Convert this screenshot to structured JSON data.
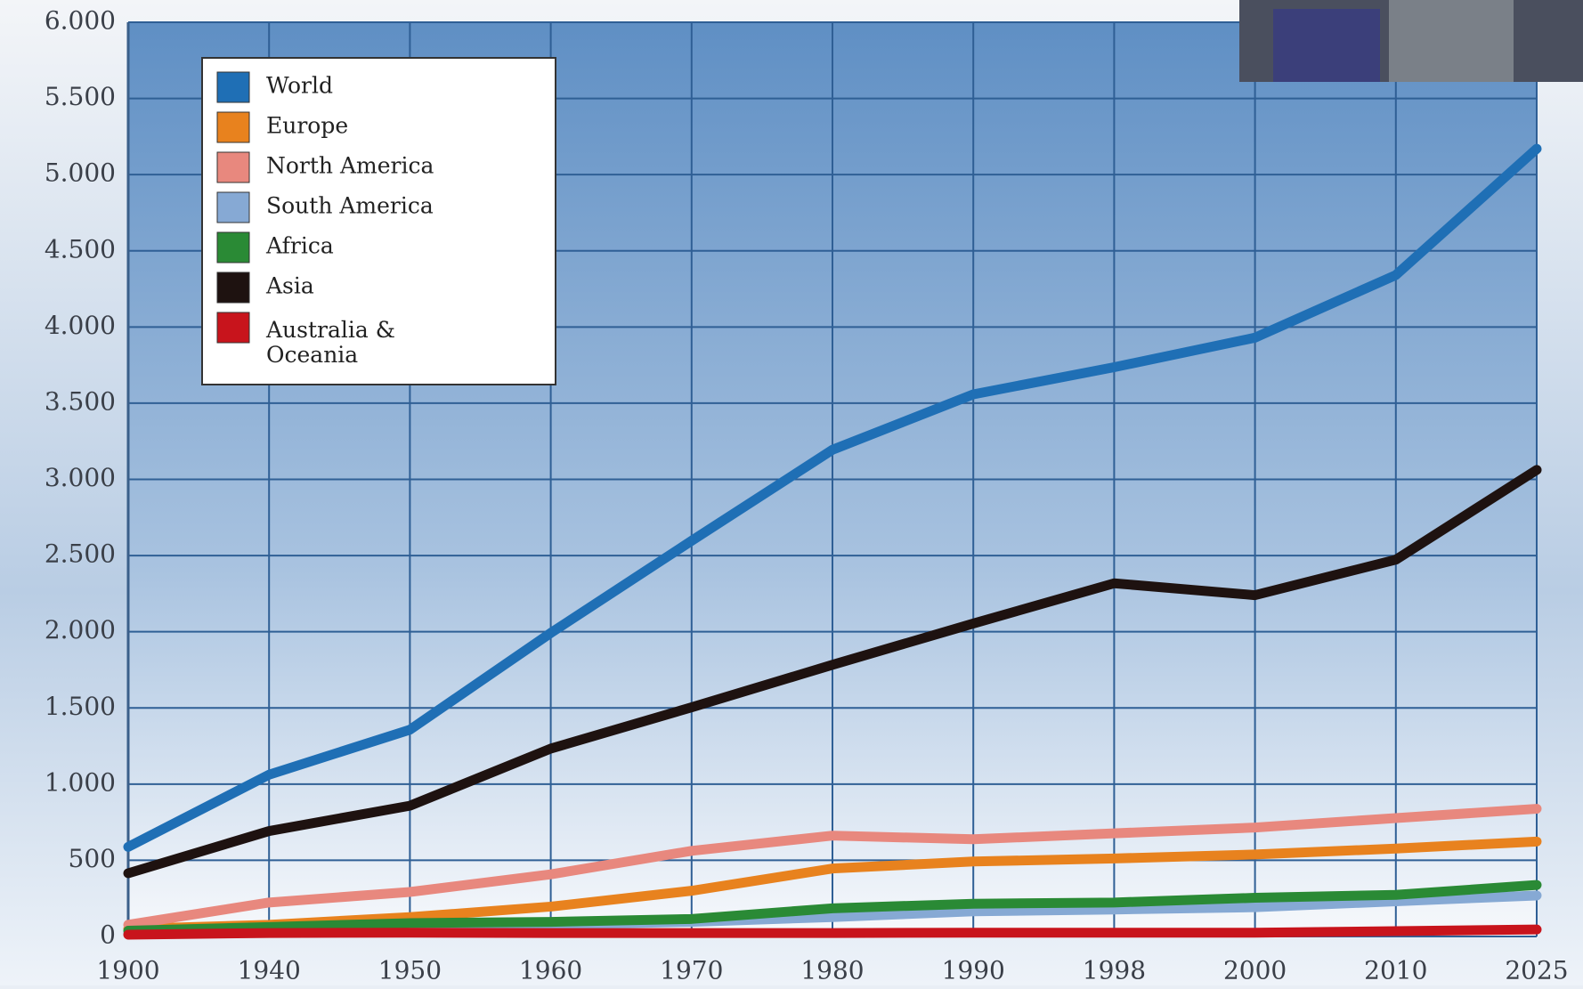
{
  "chart_data": {
    "type": "line",
    "categories": [
      "1900",
      "1940",
      "1950",
      "1960",
      "1970",
      "1980",
      "1990",
      "1998",
      "2000",
      "2010",
      "2025"
    ],
    "series": [
      {
        "name": "World",
        "color": "#1f6fb5",
        "values": [
          588,
          1062,
          1357,
          1992,
          2597,
          3194,
          3558,
          3736,
          3930,
          4341,
          5170
        ]
      },
      {
        "name": "Europe",
        "color": "#e8821e",
        "values": [
          50,
          77,
          127,
          196,
          300,
          446,
          492,
          512,
          538,
          577,
          623
        ]
      },
      {
        "name": "North America",
        "color": "#e8887e",
        "values": [
          77,
          223,
          292,
          408,
          562,
          662,
          638,
          677,
          715,
          777,
          838
        ]
      },
      {
        "name": "South America",
        "color": "#86a9d4",
        "values": [
          23,
          38,
          62,
          77,
          96,
          127,
          165,
          177,
          192,
          231,
          269
        ]
      },
      {
        "name": "Africa",
        "color": "#2a8a35",
        "values": [
          38,
          62,
          88,
          96,
          115,
          185,
          215,
          223,
          254,
          273,
          338
        ]
      },
      {
        "name": "Asia",
        "color": "#1e1210",
        "values": [
          415,
          692,
          858,
          1233,
          1504,
          1783,
          2054,
          2318,
          2240,
          2473,
          3062
        ]
      },
      {
        "name": "Australia & Oceania",
        "color": "#c8141c",
        "values": [
          12,
          23,
          25,
          23,
          23,
          23,
          25,
          25,
          25,
          35,
          46
        ]
      }
    ],
    "ylim": [
      0,
      6000
    ],
    "yticks": [
      0,
      500,
      {
        "value": 1000,
        "label": "1.000"
      },
      {
        "value": 1500,
        "label": "1.500"
      },
      {
        "value": 2000,
        "label": "2.000"
      },
      {
        "value": 2500,
        "label": "2.500"
      },
      {
        "value": 3000,
        "label": "3.000"
      },
      {
        "value": 3500,
        "label": "3.500"
      },
      {
        "value": 4000,
        "label": "4.000"
      },
      {
        "value": 4500,
        "label": "4.500"
      },
      {
        "value": 5000,
        "label": "5.000"
      },
      {
        "value": 5500,
        "label": "5.500"
      },
      {
        "value": 6000,
        "label": "6.000"
      }
    ],
    "grid": true,
    "legend": "upper left"
  }
}
